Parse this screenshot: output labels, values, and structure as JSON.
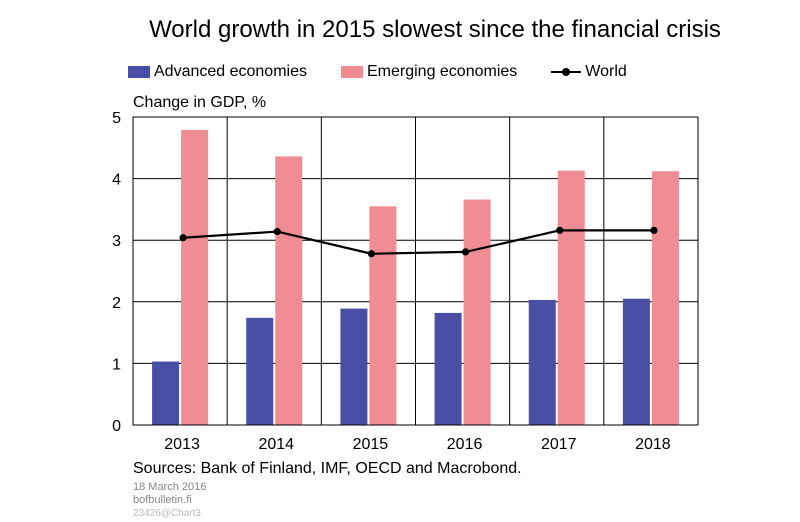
{
  "colors": {
    "advanced": "#4a4fa6",
    "emerging": "#f08c94",
    "world": "#000000",
    "grid": "#000000"
  },
  "footer": {
    "sources": "Sources: Bank of Finland, IMF, OECD and Macrobond.",
    "date": "18 March 2016",
    "site": "bofbulletin.fi",
    "code": "23426@Chart3"
  },
  "chart_data": {
    "type": "bar",
    "title": "World growth in 2015 slowest since the financial crisis",
    "ylabel": "Change in GDP, %",
    "xlabel": "",
    "ylim": [
      0,
      5
    ],
    "yticks": [
      "0",
      "1",
      "2",
      "3",
      "4",
      "5"
    ],
    "grid": true,
    "legend_position": "top",
    "categories": [
      "2013",
      "2014",
      "2015",
      "2016",
      "2017",
      "2018"
    ],
    "series": [
      {
        "name": "Advanced economies",
        "type": "bar",
        "values": [
          1.03,
          1.74,
          1.89,
          1.82,
          2.03,
          2.05
        ]
      },
      {
        "name": "Emerging economies",
        "type": "bar",
        "values": [
          4.79,
          4.36,
          3.55,
          3.66,
          4.13,
          4.12
        ]
      },
      {
        "name": "World",
        "type": "line",
        "values": [
          3.04,
          3.14,
          2.78,
          2.81,
          3.16,
          3.16
        ]
      }
    ]
  }
}
